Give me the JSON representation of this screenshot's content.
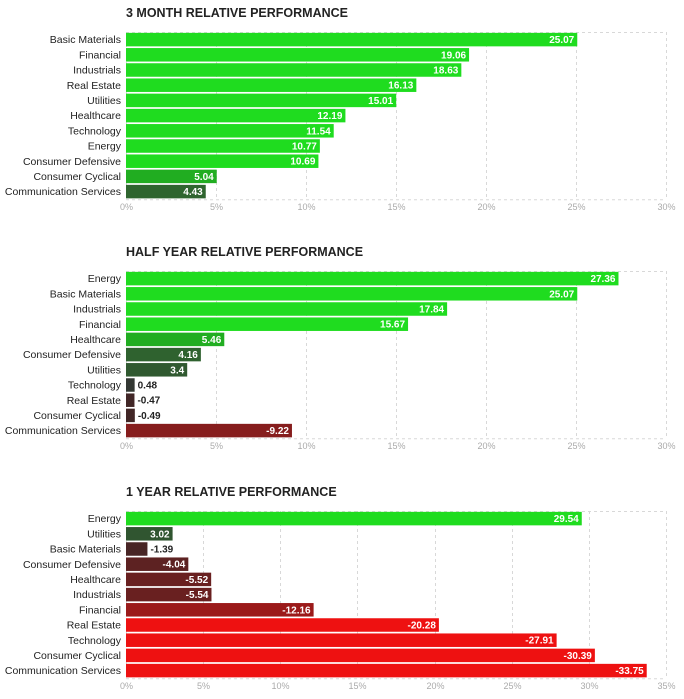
{
  "colors": {
    "pos_strong": "#1fdc1f",
    "pos_mid": "#21a821",
    "neg_strong": "#ee1111",
    "neg_mid": "#8c1c1c"
  },
  "chart_data": [
    {
      "type": "bar",
      "orientation": "horizontal",
      "title": "3 MONTH RELATIVE PERFORMANCE",
      "categories": [
        "Basic Materials",
        "Financial",
        "Industrials",
        "Real Estate",
        "Utilities",
        "Healthcare",
        "Technology",
        "Energy",
        "Consumer Defensive",
        "Consumer Cyclical",
        "Communication Services"
      ],
      "values": [
        25.07,
        19.06,
        18.63,
        16.13,
        15.01,
        12.19,
        11.54,
        10.77,
        10.69,
        5.04,
        4.43
      ],
      "value_labels": [
        "25.07",
        "19.06",
        "18.63",
        "16.13",
        "15.01",
        "12.19",
        "11.54",
        "10.77",
        "10.69",
        "5.04",
        "4.43"
      ],
      "xlim": [
        0,
        30
      ],
      "ticks": [
        "0%",
        "5%",
        "10%",
        "15%",
        "20%",
        "25%",
        "30%"
      ],
      "tick_values": [
        0,
        5,
        10,
        15,
        20,
        25,
        30
      ]
    },
    {
      "type": "bar",
      "orientation": "horizontal",
      "title": "HALF YEAR RELATIVE PERFORMANCE",
      "categories": [
        "Energy",
        "Basic Materials",
        "Industrials",
        "Financial",
        "Healthcare",
        "Consumer Defensive",
        "Utilities",
        "Technology",
        "Real Estate",
        "Consumer Cyclical",
        "Communication Services"
      ],
      "values": [
        27.36,
        25.07,
        17.84,
        15.67,
        5.46,
        4.16,
        3.4,
        0.48,
        -0.47,
        -0.49,
        -9.22
      ],
      "value_labels": [
        "27.36",
        "25.07",
        "17.84",
        "15.67",
        "5.46",
        "4.16",
        "3.4",
        "0.48",
        "-0.47",
        "-0.49",
        "-9.22"
      ],
      "xlim": [
        0,
        30
      ],
      "ticks": [
        "0%",
        "5%",
        "10%",
        "15%",
        "20%",
        "25%",
        "30%"
      ],
      "tick_values": [
        0,
        5,
        10,
        15,
        20,
        25,
        30
      ]
    },
    {
      "type": "bar",
      "orientation": "horizontal",
      "title": "1 YEAR RELATIVE PERFORMANCE",
      "categories": [
        "Energy",
        "Utilities",
        "Basic Materials",
        "Consumer Defensive",
        "Healthcare",
        "Industrials",
        "Financial",
        "Real Estate",
        "Technology",
        "Consumer Cyclical",
        "Communication Services"
      ],
      "values": [
        29.54,
        3.02,
        -1.39,
        -4.04,
        -5.52,
        -5.54,
        -12.16,
        -20.28,
        -27.91,
        -30.39,
        -33.75
      ],
      "value_labels": [
        "29.54",
        "3.02",
        "-1.39",
        "-4.04",
        "-5.52",
        "-5.54",
        "-12.16",
        "-20.28",
        "-27.91",
        "-30.39",
        "-33.75"
      ],
      "xlim": [
        0,
        35
      ],
      "ticks": [
        "0%",
        "5%",
        "10%",
        "15%",
        "20%",
        "25%",
        "30%",
        "35%"
      ],
      "tick_values": [
        0,
        5,
        10,
        15,
        20,
        25,
        30,
        35
      ]
    }
  ]
}
